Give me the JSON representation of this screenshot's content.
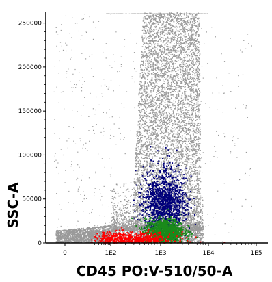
{
  "chart_data": {
    "type": "scatter",
    "title": "",
    "xlabel": "CD45 PO:V-510/50-A",
    "ylabel": "SSC-A",
    "x_scale": "biexponential",
    "y_scale": "linear",
    "ylim": [
      0,
      262144
    ],
    "x_ticks": [
      "0",
      "1E2",
      "1E3",
      "1E4",
      "1E5"
    ],
    "y_ticks": [
      "0",
      "50000",
      "100000",
      "150000",
      "200000",
      "250000"
    ],
    "grid": false,
    "legend": "none",
    "populations": [
      {
        "color": "#9a9a9a",
        "description_shape": "dense column across SSC plus low-SSC band",
        "x_center_decade": 3.2,
        "y_range": [
          0,
          262144
        ]
      },
      {
        "color": "#00007a",
        "x_center_decade": 3.1,
        "y_center": 45000,
        "y_spread": 25000
      },
      {
        "color": "#1a8a1a",
        "x_center_decade": 3.1,
        "y_center": 14000,
        "y_spread": 7000
      },
      {
        "color": "#ff0000",
        "x_center_decade": 2.4,
        "y_center": 5000,
        "y_spread": 4000
      }
    ]
  }
}
